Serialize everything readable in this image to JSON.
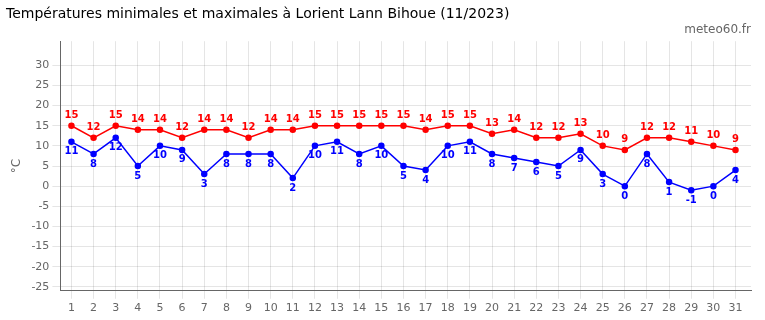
{
  "chart_data": {
    "type": "line",
    "title": "Températures minimales et maximales à Lorient Lann Bihoue (11/2023)",
    "subtitle": "meteo60.fr",
    "ylabel": "°C",
    "x": [
      1,
      2,
      3,
      4,
      5,
      6,
      7,
      8,
      9,
      10,
      11,
      12,
      13,
      14,
      15,
      16,
      17,
      18,
      19,
      20,
      21,
      22,
      23,
      24,
      25,
      26,
      27,
      28,
      29,
      30,
      31
    ],
    "series": [
      {
        "color": "#0000ff",
        "values": [
          11,
          8,
          12,
          5,
          10,
          9,
          3,
          8,
          8,
          8,
          2,
          10,
          11,
          8,
          10,
          5,
          4,
          10,
          11,
          8,
          7,
          6,
          5,
          9,
          3,
          0,
          8,
          1,
          -1,
          0,
          4
        ]
      },
      {
        "color": "#ff0000",
        "values": [
          15,
          12,
          15,
          14,
          14,
          12,
          14,
          14,
          12,
          14,
          14,
          15,
          15,
          15,
          15,
          15,
          14,
          15,
          15,
          13,
          14,
          12,
          12,
          13,
          10,
          9,
          12,
          12,
          11,
          10,
          9
        ]
      }
    ],
    "xlim": [
      0.5,
      31.7
    ],
    "xticks": [
      1,
      2,
      3,
      4,
      5,
      6,
      7,
      8,
      9,
      10,
      11,
      12,
      13,
      14,
      15,
      16,
      17,
      18,
      19,
      20,
      21,
      22,
      23,
      24,
      25,
      26,
      27,
      28,
      29,
      30,
      31
    ],
    "ylim": [
      -26,
      36
    ],
    "yticks": [
      -25,
      -20,
      -15,
      -10,
      -5,
      0,
      5,
      10,
      15,
      20,
      25,
      30
    ],
    "grid": true,
    "data_labels": true,
    "marker": "circle"
  }
}
